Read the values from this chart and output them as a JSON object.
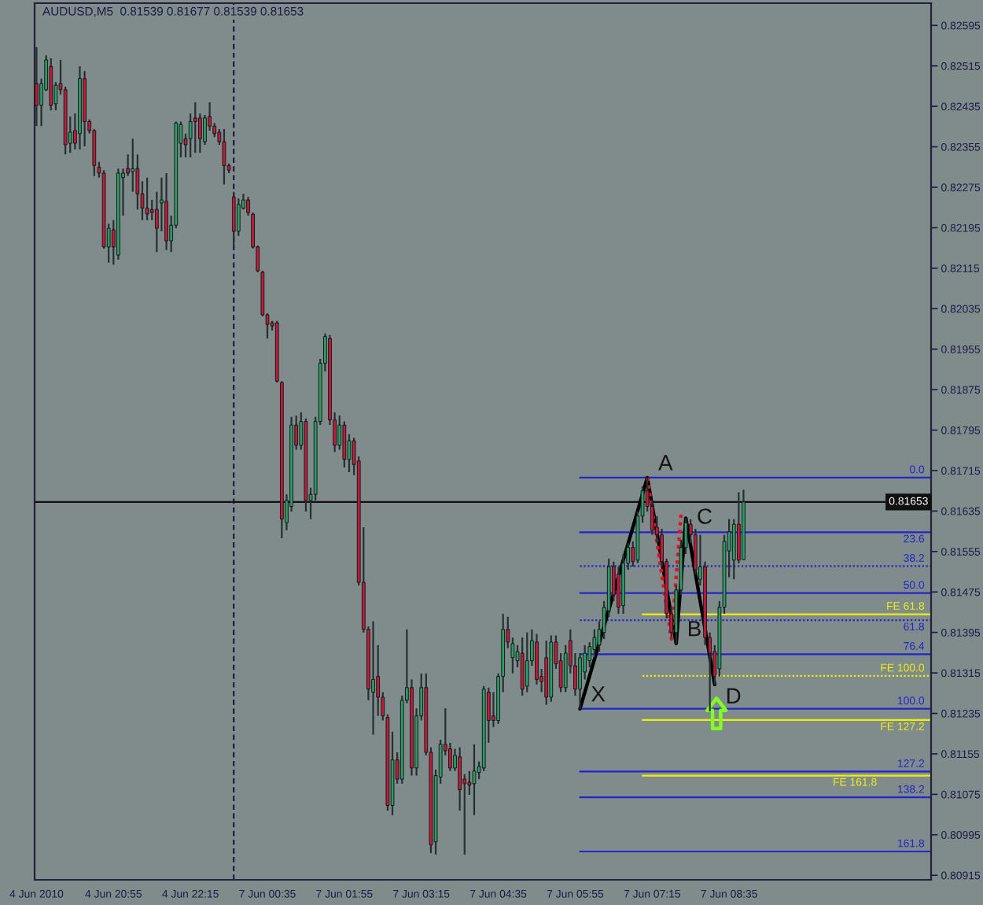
{
  "chart_data": [
    {
      "type": "candlestick",
      "title": "AUDUSD,M5  0.81539 0.81677 0.81539 0.81653",
      "x": [
        "2010-06-04T19:35",
        "2010-06-04T19:40",
        "2010-06-04T19:45",
        "2010-06-04T19:50",
        "2010-06-04T19:55",
        "2010-06-04T20:00",
        "2010-06-04T20:05",
        "2010-06-04T20:10",
        "2010-06-04T20:15",
        "2010-06-04T20:20",
        "2010-06-04T20:25",
        "2010-06-04T20:30",
        "2010-06-04T20:35",
        "2010-06-04T20:40",
        "2010-06-04T20:45",
        "2010-06-04T20:50",
        "2010-06-04T20:55",
        "2010-06-04T21:00",
        "2010-06-04T21:05",
        "2010-06-04T21:10",
        "2010-06-04T21:15",
        "2010-06-04T21:20",
        "2010-06-04T21:25",
        "2010-06-04T21:30",
        "2010-06-04T21:35",
        "2010-06-04T21:40",
        "2010-06-04T21:45",
        "2010-06-04T21:50",
        "2010-06-04T21:55",
        "2010-06-04T22:00",
        "2010-06-04T22:05",
        "2010-06-04T22:10",
        "2010-06-04T22:15",
        "2010-06-04T22:20",
        "2010-06-04T22:25",
        "2010-06-04T22:30",
        "2010-06-04T22:35",
        "2010-06-04T22:40",
        "2010-06-04T22:45",
        "2010-06-04T22:50",
        "2010-06-04T22:55"
      ],
      "ohlc": [
        [
          0.8248,
          0.82552,
          0.82396,
          0.82437
        ],
        [
          0.82437,
          0.8249,
          0.82396,
          0.8248
        ],
        [
          0.82468,
          0.82536,
          0.82465,
          0.82527
        ],
        [
          0.82514,
          0.8253,
          0.82427,
          0.82437
        ],
        [
          0.8244,
          0.82483,
          0.82427,
          0.82477
        ],
        [
          0.8248,
          0.82527,
          0.82458,
          0.82468
        ],
        [
          0.82468,
          0.82474,
          0.8234,
          0.82359
        ],
        [
          0.82362,
          0.82415,
          0.82343,
          0.82384
        ],
        [
          0.82387,
          0.82421,
          0.8235,
          0.82362
        ],
        [
          0.82381,
          0.82514,
          0.8235,
          0.8249
        ],
        [
          0.8249,
          0.82505,
          0.82356,
          0.82405
        ],
        [
          0.82405,
          0.82409,
          0.82381,
          0.82387
        ],
        [
          0.82387,
          0.8239,
          0.82297,
          0.82318
        ],
        [
          0.82315,
          0.82325,
          0.82294,
          0.82303
        ],
        [
          0.82303,
          0.82309,
          0.82154,
          0.82157
        ],
        [
          0.82157,
          0.82203,
          0.82126,
          0.82194
        ],
        [
          0.82191,
          0.8221,
          0.82122,
          0.82157
        ],
        [
          0.82141,
          0.82312,
          0.82132,
          0.82303
        ],
        [
          0.82294,
          0.82312,
          0.82219,
          0.82303
        ],
        [
          0.82312,
          0.8234,
          0.82297,
          0.82303
        ],
        [
          0.82306,
          0.82371,
          0.82266,
          0.82312
        ],
        [
          0.82312,
          0.8234,
          0.82231,
          0.82262
        ],
        [
          0.82262,
          0.82287,
          0.8221,
          0.82234
        ],
        [
          0.82234,
          0.82294,
          0.8221,
          0.82222
        ],
        [
          0.82231,
          0.8225,
          0.8221,
          0.82225
        ],
        [
          0.82231,
          0.82266,
          0.82147,
          0.82194
        ],
        [
          0.82244,
          0.82294,
          0.82188,
          0.8225
        ],
        [
          0.82247,
          0.82303,
          0.82151,
          0.82169
        ],
        [
          0.82169,
          0.82219,
          0.82147,
          0.822
        ],
        [
          0.822,
          0.82405,
          0.82194,
          0.82402
        ],
        [
          0.82362,
          0.82405,
          0.82334,
          0.82399
        ],
        [
          0.82371,
          0.82381,
          0.82334,
          0.82359
        ],
        [
          0.82371,
          0.82421,
          0.82334,
          0.82405
        ],
        [
          0.82412,
          0.82443,
          0.82343,
          0.82405
        ],
        [
          0.82412,
          0.82421,
          0.82343,
          0.82371
        ],
        [
          0.82365,
          0.82418,
          0.82359,
          0.82412
        ],
        [
          0.82415,
          0.82443,
          0.82387,
          0.82396
        ],
        [
          0.82396,
          0.82402,
          0.82374,
          0.82381
        ],
        [
          0.82384,
          0.8239,
          0.82359,
          0.82365
        ],
        [
          0.82365,
          0.8239,
          0.82281,
          0.82318
        ],
        [
          0.82318,
          0.82322,
          0.82303,
          0.82309
        ]
      ],
      "colors": [
        "#c41a3c",
        "#2e9c64",
        "#2e9c64",
        "#c41a3c",
        "#2e9c64",
        "#c41a3c",
        "#c41a3c",
        "#2e9c64",
        "#c41a3c",
        "#2e9c64",
        "#c41a3c",
        "#c41a3c",
        "#c41a3c",
        "#c41a3c",
        "#c41a3c",
        "#2e9c64",
        "#c41a3c",
        "#2e9c64",
        "#2e9c64",
        "#c41a3c",
        "#2e9c64",
        "#c41a3c",
        "#c41a3c",
        "#c41a3c",
        "#c41a3c",
        "#c41a3c",
        "#2e9c64",
        "#c41a3c",
        "#2e9c64",
        "#2e9c64",
        "#2e9c64",
        "#c41a3c",
        "#2e9c64",
        "#c41a3c",
        "#c41a3c",
        "#2e9c64",
        "#c41a3c",
        "#c41a3c",
        "#c41a3c",
        "#c41a3c",
        "#c41a3c"
      ],
      "ref_lines": [
        {
          "axis": "y",
          "value": 0.81653,
          "color": "#101010"
        }
      ],
      "xlim": [
        "2010-06-04T19:33",
        "2010-06-04T22:58"
      ],
      "ylim": [
        0.80906,
        0.82639
      ],
      "xticks": [
        {
          "value": "2010-06-04T19:35",
          "label": "4 Jun 2010"
        },
        {
          "value": "2010-06-04T20:55",
          "label": "4 Jun 20:55"
        },
        {
          "value": "2010-06-04T22:15",
          "label": "4 Jun 22:15"
        }
      ],
      "tick_labels": "x"
    },
    {
      "type": "candlestick",
      "x": [
        "2010-06-07T00:00",
        "2010-06-07T00:05",
        "2010-06-07T00:10",
        "2010-06-07T00:15",
        "2010-06-07T00:20",
        "2010-06-07T00:25",
        "2010-06-07T00:30",
        "2010-06-07T00:35",
        "2010-06-07T00:40",
        "2010-06-07T00:45",
        "2010-06-07T00:50",
        "2010-06-07T00:55",
        "2010-06-07T01:00",
        "2010-06-07T01:05",
        "2010-06-07T01:10",
        "2010-06-07T01:15",
        "2010-06-07T01:20",
        "2010-06-07T01:25",
        "2010-06-07T01:30",
        "2010-06-07T01:35",
        "2010-06-07T01:40",
        "2010-06-07T01:45",
        "2010-06-07T01:50",
        "2010-06-07T01:55",
        "2010-06-07T02:00",
        "2010-06-07T02:05",
        "2010-06-07T02:10",
        "2010-06-07T02:15",
        "2010-06-07T02:20",
        "2010-06-07T02:25",
        "2010-06-07T02:30",
        "2010-06-07T02:35",
        "2010-06-07T02:40",
        "2010-06-07T02:45",
        "2010-06-07T02:50",
        "2010-06-07T02:55",
        "2010-06-07T03:00",
        "2010-06-07T03:05",
        "2010-06-07T03:10",
        "2010-06-07T03:15",
        "2010-06-07T03:20",
        "2010-06-07T03:25",
        "2010-06-07T03:30",
        "2010-06-07T03:35",
        "2010-06-07T03:40",
        "2010-06-07T03:45",
        "2010-06-07T03:50",
        "2010-06-07T03:55",
        "2010-06-07T04:00",
        "2010-06-07T04:05",
        "2010-06-07T04:10",
        "2010-06-07T04:15",
        "2010-06-07T04:20",
        "2010-06-07T04:25",
        "2010-06-07T04:30",
        "2010-06-07T04:35",
        "2010-06-07T04:40",
        "2010-06-07T04:45",
        "2010-06-07T04:50",
        "2010-06-07T04:55",
        "2010-06-07T05:00",
        "2010-06-07T05:05",
        "2010-06-07T05:10",
        "2010-06-07T05:15",
        "2010-06-07T05:20",
        "2010-06-07T05:25",
        "2010-06-07T05:30",
        "2010-06-07T05:35",
        "2010-06-07T05:40",
        "2010-06-07T05:45",
        "2010-06-07T05:50",
        "2010-06-07T05:55",
        "2010-06-07T06:00",
        "2010-06-07T06:05",
        "2010-06-07T06:10",
        "2010-06-07T06:15",
        "2010-06-07T06:20",
        "2010-06-07T06:25",
        "2010-06-07T06:30",
        "2010-06-07T06:35",
        "2010-06-07T06:40",
        "2010-06-07T06:45",
        "2010-06-07T06:50",
        "2010-06-07T06:55",
        "2010-06-07T07:00",
        "2010-06-07T07:05",
        "2010-06-07T07:10",
        "2010-06-07T07:15",
        "2010-06-07T07:20",
        "2010-06-07T07:25",
        "2010-06-07T07:30",
        "2010-06-07T07:35",
        "2010-06-07T07:40",
        "2010-06-07T07:45",
        "2010-06-07T07:50",
        "2010-06-07T07:55",
        "2010-06-07T08:00",
        "2010-06-07T08:05",
        "2010-06-07T08:10",
        "2010-06-07T08:15",
        "2010-06-07T08:20",
        "2010-06-07T08:25",
        "2010-06-07T08:30",
        "2010-06-07T08:35",
        "2010-06-07T08:40",
        "2010-06-07T08:45",
        "2010-06-07T08:50"
      ],
      "ohlc": [
        [
          0.82256,
          0.82266,
          0.82157,
          0.82188
        ],
        [
          0.82188,
          0.82253,
          0.82179,
          0.82241
        ],
        [
          0.82234,
          0.82262,
          0.82231,
          0.8225
        ],
        [
          0.8225,
          0.82256,
          0.82219,
          0.82225
        ],
        [
          0.82222,
          0.82225,
          0.82154,
          0.82157
        ],
        [
          0.82157,
          0.8216,
          0.82107,
          0.8211
        ],
        [
          0.82107,
          0.8211,
          0.8202,
          0.82023
        ],
        [
          0.82023,
          0.82026,
          0.81976,
          0.82004
        ],
        [
          0.82007,
          0.82011,
          0.81992,
          0.82001
        ],
        [
          0.82007,
          0.82011,
          0.81889,
          0.81892
        ],
        [
          0.81889,
          0.81892,
          0.81581,
          0.81619
        ],
        [
          0.81612,
          0.81668,
          0.81597,
          0.81656
        ],
        [
          0.81644,
          0.81821,
          0.81634,
          0.81805
        ],
        [
          0.81805,
          0.81824,
          0.81756,
          0.81765
        ],
        [
          0.81765,
          0.8183,
          0.81756,
          0.81812
        ],
        [
          0.81812,
          0.81818,
          0.81634,
          0.81656
        ],
        [
          0.81656,
          0.81681,
          0.81619,
          0.81668
        ],
        [
          0.81668,
          0.81821,
          0.81656,
          0.81812
        ],
        [
          0.81812,
          0.81936,
          0.81805,
          0.81927
        ],
        [
          0.81927,
          0.81986,
          0.81911,
          0.8198
        ],
        [
          0.81976,
          0.81983,
          0.81805,
          0.81815
        ],
        [
          0.81815,
          0.8183,
          0.81752,
          0.81765
        ],
        [
          0.81765,
          0.81824,
          0.81756,
          0.81805
        ],
        [
          0.81805,
          0.81812,
          0.81721,
          0.81737
        ],
        [
          0.81737,
          0.81787,
          0.81712,
          0.81774
        ],
        [
          0.81774,
          0.8178,
          0.81706,
          0.81727
        ],
        [
          0.81734,
          0.81743,
          0.81488,
          0.81494
        ],
        [
          0.81494,
          0.81603,
          0.81395,
          0.81401
        ],
        [
          0.81401,
          0.81407,
          0.81261,
          0.81283
        ],
        [
          0.81277,
          0.81417,
          0.81193,
          0.81302
        ],
        [
          0.81308,
          0.8137,
          0.8123,
          0.81267
        ],
        [
          0.81267,
          0.81277,
          0.81221,
          0.8123
        ],
        [
          0.81227,
          0.81233,
          0.81043,
          0.81053
        ],
        [
          0.81053,
          0.81199,
          0.81034,
          0.81143
        ],
        [
          0.81143,
          0.81158,
          0.81096,
          0.81105
        ],
        [
          0.81105,
          0.8127,
          0.81096,
          0.81261
        ],
        [
          0.81261,
          0.81401,
          0.81255,
          0.81286
        ],
        [
          0.81286,
          0.81302,
          0.81112,
          0.81127
        ],
        [
          0.81127,
          0.81245,
          0.81112,
          0.8123
        ],
        [
          0.8123,
          0.81314,
          0.81221,
          0.81286
        ],
        [
          0.81286,
          0.81314,
          0.81152,
          0.81158
        ],
        [
          0.81158,
          0.81168,
          0.80959,
          0.80975
        ],
        [
          0.80981,
          0.81124,
          0.80956,
          0.81112
        ],
        [
          0.81109,
          0.81183,
          0.81096,
          0.81174
        ],
        [
          0.81174,
          0.81245,
          0.81152,
          0.81161
        ],
        [
          0.81165,
          0.81177,
          0.81121,
          0.81127
        ],
        [
          0.81127,
          0.81165,
          0.81121,
          0.81152
        ],
        [
          0.81149,
          0.81168,
          0.81043,
          0.81084
        ],
        [
          0.81105,
          0.81115,
          0.80956,
          0.81096
        ],
        [
          0.81099,
          0.81121,
          0.81074,
          0.81093
        ],
        [
          0.81096,
          0.81174,
          0.81034,
          0.81121
        ],
        [
          0.81118,
          0.8114,
          0.81105,
          0.8113
        ],
        [
          0.81127,
          0.81289,
          0.81121,
          0.81283
        ],
        [
          0.81277,
          0.81286,
          0.81177,
          0.81221
        ],
        [
          0.8123,
          0.81277,
          0.81208,
          0.81221
        ],
        [
          0.81221,
          0.81314,
          0.81214,
          0.81308
        ],
        [
          0.81308,
          0.81432,
          0.81277,
          0.81401
        ],
        [
          0.81401,
          0.81426,
          0.81364,
          0.81376
        ],
        [
          0.81345,
          0.81385,
          0.81314,
          0.81373
        ],
        [
          0.81339,
          0.8137,
          0.81326,
          0.81357
        ],
        [
          0.81354,
          0.81385,
          0.8127,
          0.81283
        ],
        [
          0.81289,
          0.81395,
          0.81277,
          0.81339
        ],
        [
          0.81339,
          0.81401,
          0.81329,
          0.81379
        ],
        [
          0.81376,
          0.81392,
          0.81292,
          0.81302
        ],
        [
          0.81308,
          0.81323,
          0.81277,
          0.81298
        ],
        [
          0.81345,
          0.81379,
          0.81252,
          0.81267
        ],
        [
          0.81267,
          0.81389,
          0.81258,
          0.81376
        ],
        [
          0.81376,
          0.81389,
          0.81323,
          0.81333
        ],
        [
          0.81339,
          0.81354,
          0.81277,
          0.81286
        ],
        [
          0.81286,
          0.8137,
          0.81277,
          0.81354
        ],
        [
          0.81379,
          0.81401,
          0.81314,
          0.81329
        ],
        [
          0.81329,
          0.81354,
          0.8127,
          0.81283
        ],
        [
          0.81283,
          0.81354,
          0.81244,
          0.81345
        ],
        [
          0.81317,
          0.8137,
          0.81302,
          0.81354
        ],
        [
          0.81339,
          0.81376,
          0.81326,
          0.81367
        ],
        [
          0.81361,
          0.81401,
          0.81345,
          0.81385
        ],
        [
          0.8137,
          0.81417,
          0.81357,
          0.81401
        ],
        [
          0.81395,
          0.81457,
          0.81382,
          0.81445
        ],
        [
          0.81438,
          0.81541,
          0.81426,
          0.81525
        ],
        [
          0.81525,
          0.81535,
          0.81457,
          0.81469
        ],
        [
          0.8151,
          0.81525,
          0.81432,
          0.81445
        ],
        [
          0.81448,
          0.8155,
          0.81432,
          0.81532
        ],
        [
          0.81532,
          0.81572,
          0.81519,
          0.81563
        ],
        [
          0.81563,
          0.81575,
          0.81525,
          0.81535
        ],
        [
          0.81538,
          0.81634,
          0.81532,
          0.81625
        ],
        [
          0.81625,
          0.81684,
          0.81612,
          0.81675
        ],
        [
          0.81675,
          0.81701,
          0.81634,
          0.81644
        ],
        [
          0.81644,
          0.81656,
          0.81588,
          0.81597
        ],
        [
          0.81603,
          0.81625,
          0.81572,
          0.81588
        ],
        [
          0.81588,
          0.816,
          0.81525,
          0.81535
        ],
        [
          0.81535,
          0.81541,
          0.81423,
          0.81432
        ],
        [
          0.81432,
          0.81445,
          0.81385,
          0.81395
        ],
        [
          0.81395,
          0.81488,
          0.81373,
          0.81479
        ],
        [
          0.81479,
          0.81578,
          0.81469,
          0.81563
        ],
        [
          0.81563,
          0.81621,
          0.8155,
          0.81612
        ],
        [
          0.81609,
          0.81619,
          0.81572,
          0.81588
        ],
        [
          0.81588,
          0.816,
          0.8151,
          0.81519
        ],
        [
          0.815,
          0.81588,
          0.81488,
          0.81525
        ],
        [
          0.81525,
          0.81535,
          0.8137,
          0.81385
        ],
        [
          0.81385,
          0.81395,
          0.81239,
          0.81354
        ],
        [
          0.81357,
          0.8137,
          0.81292,
          0.81308
        ],
        [
          0.81323,
          0.81457,
          0.81308,
          0.81445
        ],
        [
          0.81445,
          0.81588,
          0.81432,
          0.81575
        ],
        [
          0.81556,
          0.81619,
          0.81504,
          0.81594
        ],
        [
          0.81538,
          0.81619,
          0.815,
          0.81609
        ],
        [
          0.81609,
          0.81672,
          0.81532,
          0.81538
        ],
        [
          0.81539,
          0.81677,
          0.81539,
          0.81653
        ]
      ],
      "colors": [
        "#c41a3c",
        "#2e9c64",
        "#2e9c64",
        "#c41a3c",
        "#c41a3c",
        "#c41a3c",
        "#c41a3c",
        "#c41a3c",
        "#c41a3c",
        "#c41a3c",
        "#c41a3c",
        "#2e9c64",
        "#2e9c64",
        "#c41a3c",
        "#2e9c64",
        "#c41a3c",
        "#2e9c64",
        "#2e9c64",
        "#2e9c64",
        "#2e9c64",
        "#c41a3c",
        "#c41a3c",
        "#2e9c64",
        "#c41a3c",
        "#2e9c64",
        "#c41a3c",
        "#c41a3c",
        "#c41a3c",
        "#c41a3c",
        "#2e9c64",
        "#c41a3c",
        "#c41a3c",
        "#c41a3c",
        "#2e9c64",
        "#c41a3c",
        "#2e9c64",
        "#2e9c64",
        "#c41a3c",
        "#2e9c64",
        "#2e9c64",
        "#c41a3c",
        "#c41a3c",
        "#2e9c64",
        "#2e9c64",
        "#c41a3c",
        "#c41a3c",
        "#2e9c64",
        "#c41a3c",
        "#c41a3c",
        "#c41a3c",
        "#2e9c64",
        "#2e9c64",
        "#2e9c64",
        "#c41a3c",
        "#c41a3c",
        "#2e9c64",
        "#2e9c64",
        "#c41a3c",
        "#2e9c64",
        "#2e9c64",
        "#c41a3c",
        "#2e9c64",
        "#2e9c64",
        "#c41a3c",
        "#c41a3c",
        "#c41a3c",
        "#2e9c64",
        "#c41a3c",
        "#c41a3c",
        "#2e9c64",
        "#c41a3c",
        "#c41a3c",
        "#2e9c64",
        "#2e9c64",
        "#2e9c64",
        "#2e9c64",
        "#2e9c64",
        "#2e9c64",
        "#2e9c64",
        "#c41a3c",
        "#c41a3c",
        "#2e9c64",
        "#2e9c64",
        "#c41a3c",
        "#2e9c64",
        "#2e9c64",
        "#c41a3c",
        "#c41a3c",
        "#c41a3c",
        "#c41a3c",
        "#c41a3c",
        "#c41a3c",
        "#2e9c64",
        "#2e9c64",
        "#2e9c64",
        "#c41a3c",
        "#c41a3c",
        "#2e9c64",
        "#c41a3c",
        "#c41a3c",
        "#c41a3c",
        "#2e9c64",
        "#2e9c64",
        "#2e9c64",
        "#2e9c64",
        "#c41a3c",
        "#2e9c64"
      ],
      "series": [
        {
          "name": "0.0",
          "type": "line",
          "color": "#2424c8",
          "x": [
            "2010-06-07T06:00",
            "2010-06-07T12:05"
          ],
          "values": [
            0.81701,
            0.81701
          ]
        },
        {
          "name": "23.6",
          "type": "line",
          "color": "#2424c8",
          "x": [
            "2010-06-07T06:00",
            "2010-06-07T12:05"
          ],
          "values": [
            0.81593,
            0.81593
          ]
        },
        {
          "name": "38.2",
          "type": "line",
          "color": "#2424c8",
          "line_style": "dotted",
          "x": [
            "2010-06-07T06:00",
            "2010-06-07T12:05"
          ],
          "values": [
            0.81526,
            0.81526
          ]
        },
        {
          "name": "50.0",
          "type": "line",
          "color": "#2424c8",
          "x": [
            "2010-06-07T06:00",
            "2010-06-07T12:05"
          ],
          "values": [
            0.81473,
            0.81473
          ]
        },
        {
          "name": "61.8",
          "type": "line",
          "color": "#2424c8",
          "line_style": "dotted",
          "x": [
            "2010-06-07T06:00",
            "2010-06-07T12:05"
          ],
          "values": [
            0.81419,
            0.81419
          ]
        },
        {
          "name": "76.4",
          "type": "line",
          "color": "#2424c8",
          "x": [
            "2010-06-07T06:00",
            "2010-06-07T12:05"
          ],
          "values": [
            0.81352,
            0.81352
          ]
        },
        {
          "name": "100.0",
          "type": "line",
          "color": "#2424c8",
          "x": [
            "2010-06-07T06:00",
            "2010-06-07T12:05"
          ],
          "values": [
            0.81244,
            0.81244
          ]
        },
        {
          "name": "127.2",
          "type": "line",
          "color": "#2424c8",
          "x": [
            "2010-06-07T06:00",
            "2010-06-07T12:05"
          ],
          "values": [
            0.8112,
            0.8112
          ]
        },
        {
          "name": "138.2",
          "type": "line",
          "color": "#2424c8",
          "x": [
            "2010-06-07T06:00",
            "2010-06-07T12:05"
          ],
          "values": [
            0.81069,
            0.81069
          ]
        },
        {
          "name": "161.8",
          "type": "line",
          "color": "#2424c8",
          "x": [
            "2010-06-07T06:00",
            "2010-06-07T12:05"
          ],
          "values": [
            0.80962,
            0.80962
          ]
        },
        {
          "name": "FE 61.8",
          "type": "line",
          "color": "#eeee10",
          "x": [
            "2010-06-07T07:05",
            "2010-06-07T12:05"
          ],
          "values": [
            0.81431,
            0.81431
          ]
        },
        {
          "name": "FE 100.0",
          "type": "line",
          "color": "#eeee10",
          "line_style": "dotted",
          "x": [
            "2010-06-07T07:05",
            "2010-06-07T12:05"
          ],
          "values": [
            0.81309,
            0.81309
          ]
        },
        {
          "name": "FE 127.2",
          "type": "line",
          "color": "#eeee10",
          "x": [
            "2010-06-07T07:05",
            "2010-06-07T12:05"
          ],
          "values": [
            0.81222,
            0.81222
          ]
        },
        {
          "name": "FE 161.8",
          "type": "line",
          "color": "#eeee10",
          "x": [
            "2010-06-07T07:05",
            "2010-06-07T12:05"
          ],
          "values": [
            0.81112,
            0.81112
          ]
        },
        {
          "type": "line",
          "color": "#000000",
          "x": [
            "2010-06-07T06:00",
            "2010-06-07T07:10",
            "2010-06-07T07:40",
            "2010-06-07T07:50",
            "2010-06-07T08:20"
          ],
          "values": [
            0.81244,
            0.81701,
            0.81373,
            0.81621,
            0.81292
          ]
        },
        {
          "type": "line",
          "color": "#e0141e",
          "line_style": "dotted",
          "x": [
            "2010-06-07T07:10",
            "2010-06-07T07:35",
            "2010-06-07T07:45"
          ],
          "values": [
            0.81701,
            0.81382,
            0.81628
          ]
        },
        {
          "type": "scatter",
          "color": "#80ff20",
          "marker": "triangle",
          "x": [
            "2010-06-07T08:22"
          ],
          "values": [
            0.81235
          ]
        }
      ],
      "ref_lines": [
        {
          "axis": "x",
          "value": "2010-06-07T00:00",
          "line_style": "dashed",
          "color": "#1c1c46"
        },
        {
          "axis": "y",
          "value": 0.81653,
          "label": "0.81653",
          "color": "#101010"
        }
      ],
      "annotations": [
        {
          "text": "X",
          "x": "2010-06-07T06:00",
          "y": 0.81244
        },
        {
          "text": "A",
          "x": "2010-06-07T07:10",
          "y": 0.81701
        },
        {
          "text": "B",
          "x": "2010-06-07T07:40",
          "y": 0.81373
        },
        {
          "text": "C",
          "x": "2010-06-07T07:50",
          "y": 0.81621
        },
        {
          "text": "D",
          "x": "2010-06-07T08:20",
          "y": 0.81292
        }
      ],
      "xlim": [
        "2010-06-06T23:58",
        "2010-06-07T12:05"
      ],
      "ylim": [
        0.80906,
        0.82639
      ],
      "xticks": [
        {
          "value": "2010-06-07T00:35",
          "label": "7 Jun 00:35"
        },
        {
          "value": "2010-06-07T01:55",
          "label": "7 Jun 01:55"
        },
        {
          "value": "2010-06-07T03:15",
          "label": "7 Jun 03:15"
        },
        {
          "value": "2010-06-07T04:35",
          "label": "7 Jun 04:35"
        },
        {
          "value": "2010-06-07T05:55",
          "label": "7 Jun 05:55"
        },
        {
          "value": "2010-06-07T07:15",
          "label": "7 Jun 07:15"
        },
        {
          "value": "2010-06-07T08:35",
          "label": "7 Jun 08:35"
        }
      ],
      "yticks": [
        0.82595,
        0.82515,
        0.82435,
        0.82355,
        0.82275,
        0.82195,
        0.82115,
        0.82035,
        0.81955,
        0.81875,
        0.81795,
        0.81715,
        0.81635,
        0.81555,
        0.81475,
        0.81395,
        0.81315,
        0.81235,
        0.81155,
        0.81075,
        0.80995,
        0.80915
      ]
    }
  ]
}
